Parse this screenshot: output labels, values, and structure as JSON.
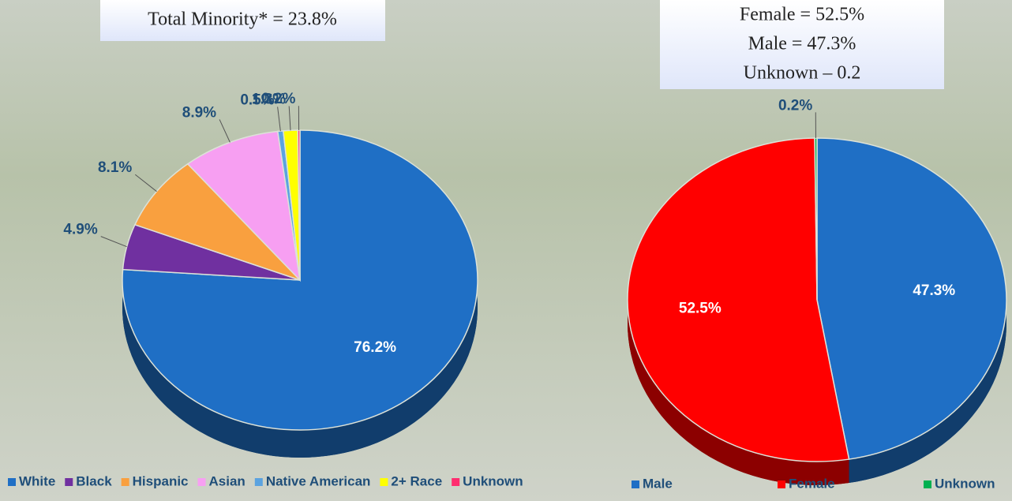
{
  "chart_data": [
    {
      "type": "pie",
      "title_lines": [
        "Total Minority* = 23.8%"
      ],
      "categories": [
        "White",
        "Black",
        "Hispanic",
        "Asian",
        "Native American",
        "2+ Race",
        "Unknown"
      ],
      "values": [
        76.2,
        4.9,
        8.1,
        8.9,
        0.5,
        1.3,
        0.2
      ],
      "value_labels": [
        "76.2%",
        "4.9%",
        "8.1%",
        "8.9%",
        "0.5%",
        "1.3%",
        "0.2%"
      ],
      "colors": [
        "#1f6fc5",
        "#7030a0",
        "#f9a03f",
        "#f79ff2",
        "#5ba3e0",
        "#ffff00",
        "#ff2d6f"
      ]
    },
    {
      "type": "pie",
      "title_lines": [
        "Female = 52.5%",
        "Male = 47.3%",
        "Unknown – 0.2"
      ],
      "categories": [
        "Male",
        "Female",
        "Unknown"
      ],
      "values": [
        47.3,
        52.5,
        0.2
      ],
      "value_labels": [
        "47.3%",
        "52.5%",
        "0.2%"
      ],
      "colors": [
        "#1f6fc5",
        "#ff0000",
        "#00b050"
      ]
    }
  ]
}
